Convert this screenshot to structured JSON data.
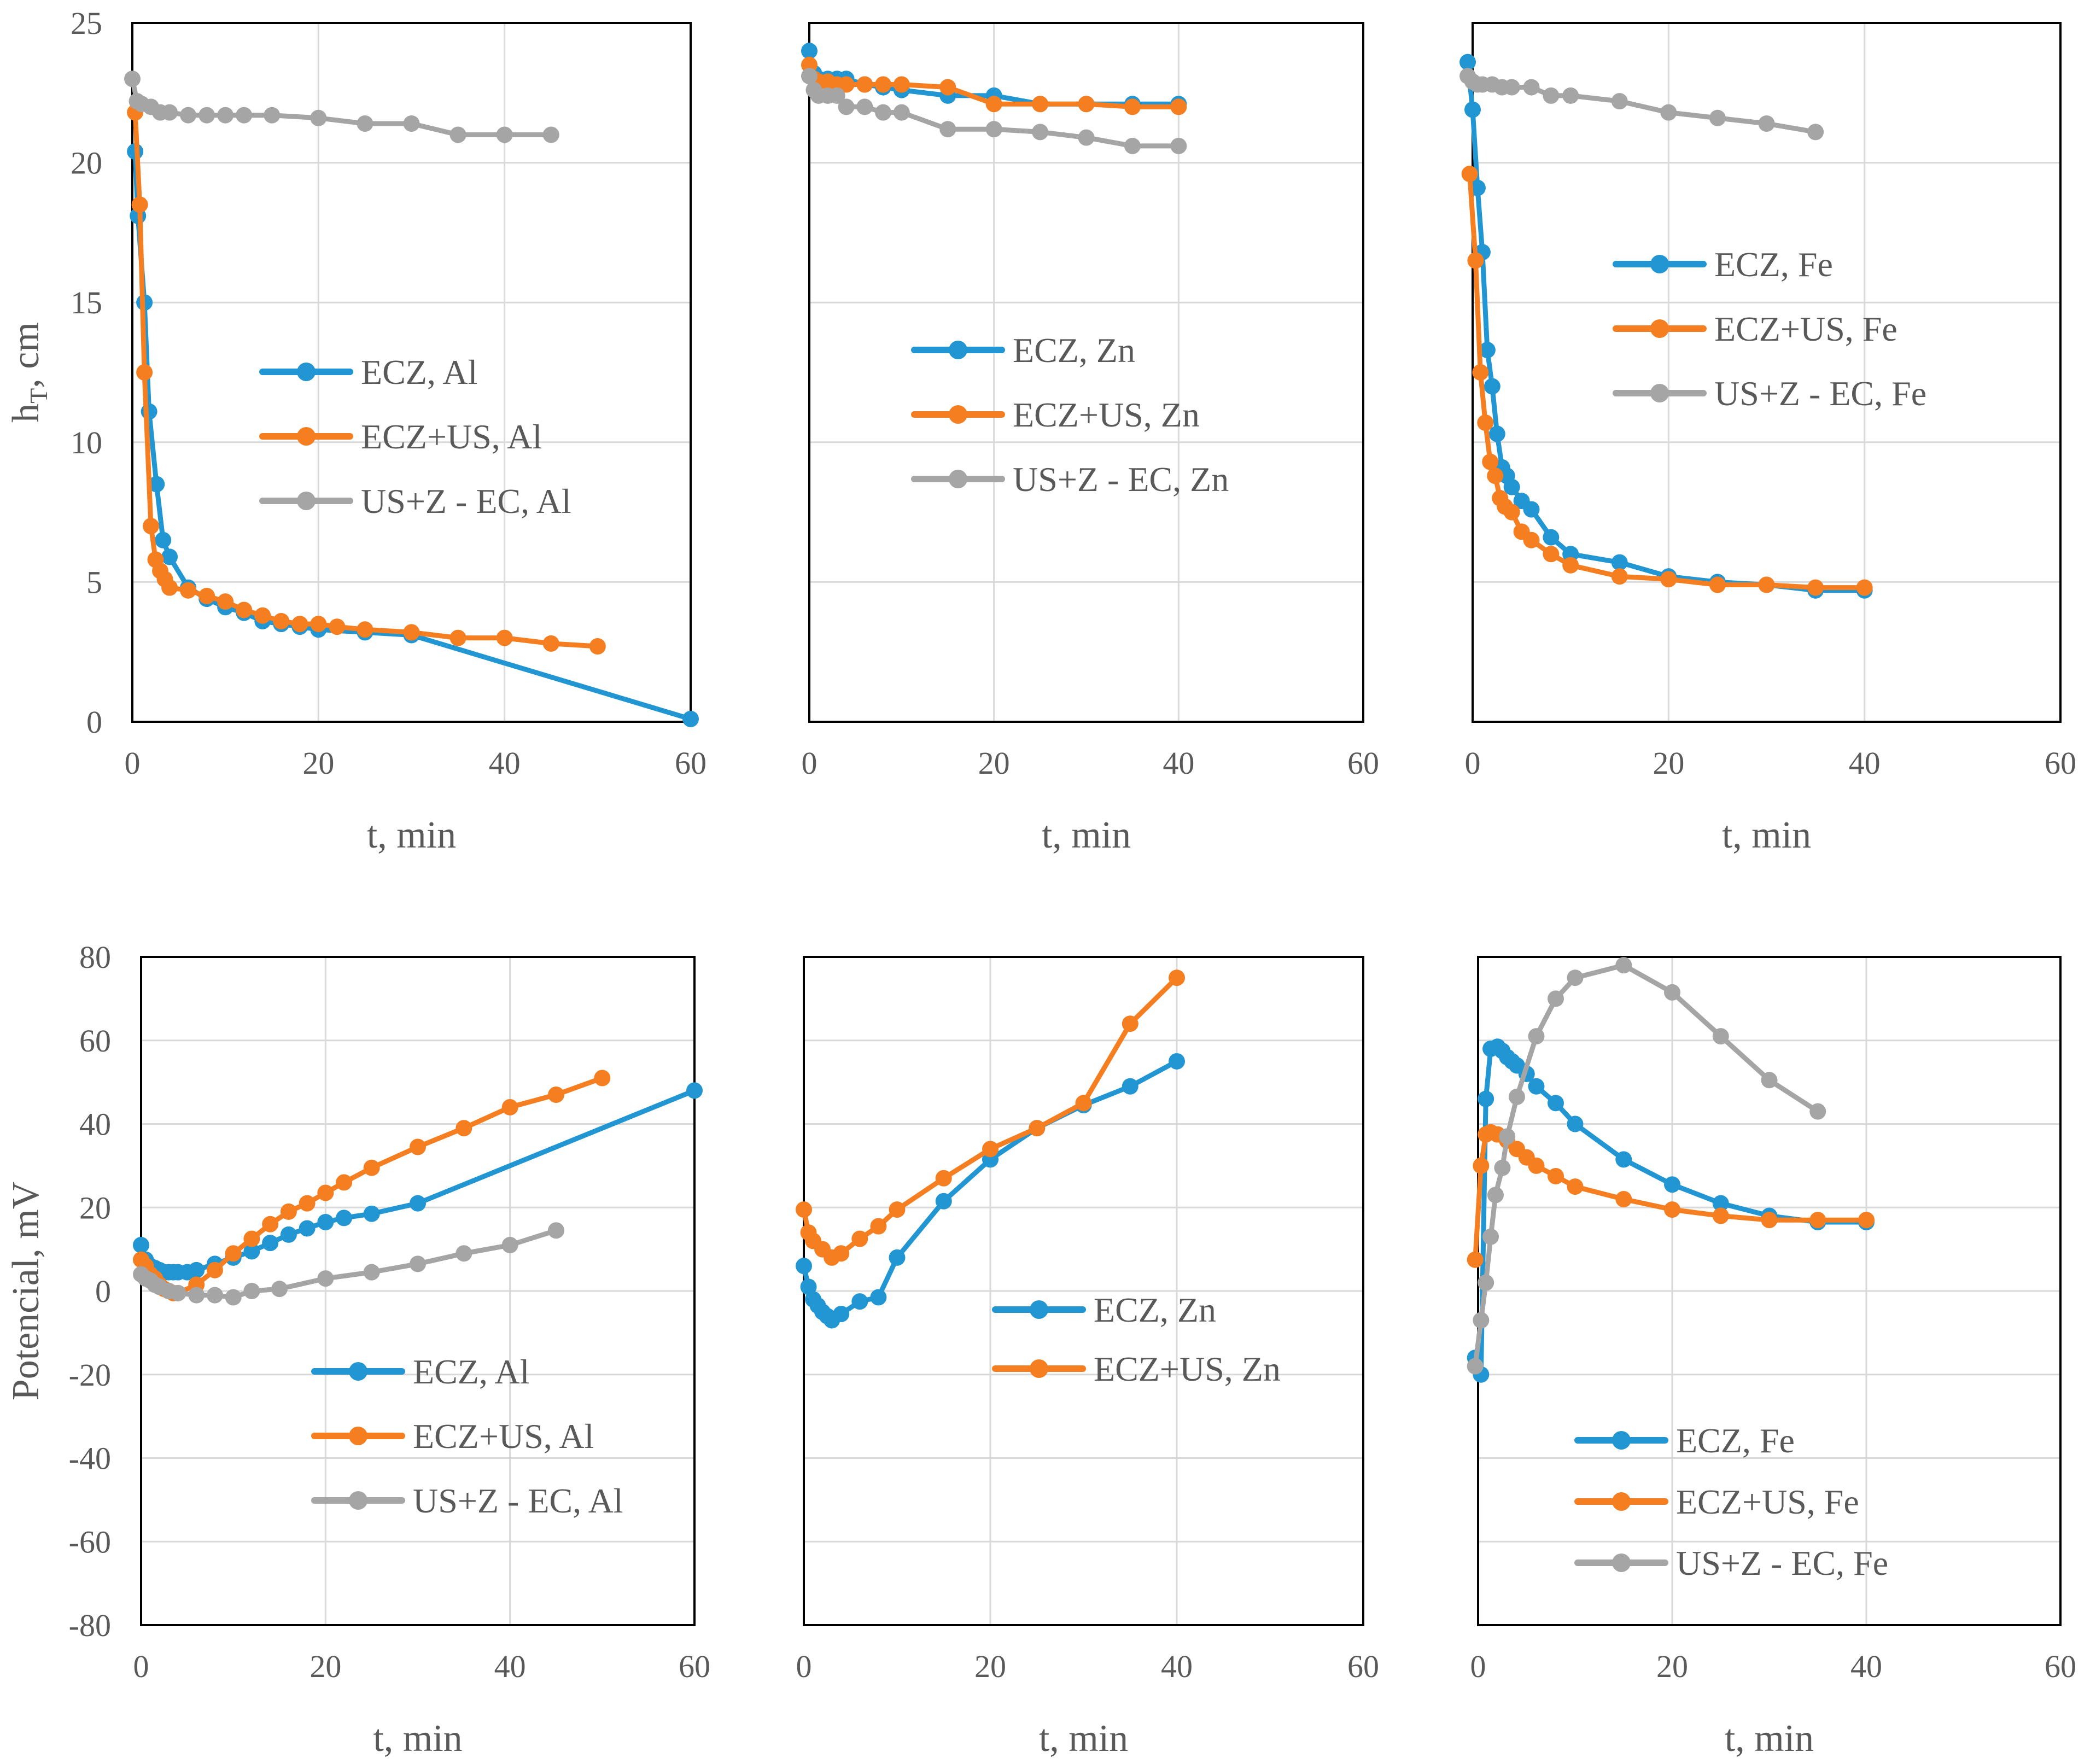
{
  "colors": {
    "blue": "#2196D3",
    "orange": "#F57E20",
    "gray": "#A5A5A5",
    "grid": "#D9D9D9",
    "text": "#595959",
    "frame": "#000000"
  },
  "chart_data": [
    {
      "id": "h-al",
      "type": "line",
      "ylabel": "h",
      "ylabel_sub": "T",
      "ylabel_suffix": ", cm",
      "xlabel": "t, min",
      "xlim": [
        0,
        60
      ],
      "ylim": [
        0,
        25
      ],
      "xticks": [
        0,
        20,
        40,
        60
      ],
      "yticks": [
        0,
        5,
        10,
        15,
        20,
        25
      ],
      "show_y_ticks": true,
      "legend_position": "center",
      "series": [
        {
          "name": "ECZ, Al",
          "color": "blue",
          "x": [
            0.3,
            0.6,
            1.3,
            1.8,
            2.6,
            3.3,
            4,
            6,
            8,
            10,
            12,
            14,
            16,
            18,
            20,
            25,
            30,
            60
          ],
          "y": [
            20.4,
            18.1,
            15.0,
            11.1,
            8.5,
            6.5,
            5.9,
            4.8,
            4.4,
            4.1,
            3.9,
            3.6,
            3.5,
            3.4,
            3.3,
            3.2,
            3.1,
            0.1
          ]
        },
        {
          "name": "ECZ+US, Al",
          "color": "orange",
          "x": [
            0.3,
            0.8,
            1.3,
            2,
            2.5,
            3,
            3.5,
            4,
            6,
            8,
            10,
            12,
            14,
            16,
            18,
            20,
            22,
            25,
            30,
            35,
            40,
            45,
            50
          ],
          "y": [
            21.8,
            18.5,
            12.5,
            7.0,
            5.8,
            5.4,
            5.1,
            4.8,
            4.7,
            4.5,
            4.3,
            4.0,
            3.8,
            3.6,
            3.5,
            3.5,
            3.4,
            3.3,
            3.2,
            3.0,
            3.0,
            2.8,
            2.7
          ]
        },
        {
          "name": "US+Z - EC, Al",
          "color": "gray",
          "x": [
            0,
            0.5,
            1,
            2,
            3,
            4,
            6,
            8,
            10,
            12,
            15,
            20,
            25,
            30,
            35,
            40,
            45
          ],
          "y": [
            23.0,
            22.2,
            22.1,
            22.0,
            21.8,
            21.8,
            21.7,
            21.7,
            21.7,
            21.7,
            21.7,
            21.6,
            21.4,
            21.4,
            21.0,
            21.0,
            21.0
          ]
        }
      ]
    },
    {
      "id": "h-zn",
      "type": "line",
      "xlabel": "t, min",
      "xlim": [
        0,
        60
      ],
      "ylim": [
        0,
        25
      ],
      "xticks": [
        0,
        20,
        40,
        60
      ],
      "yticks": [
        0,
        5,
        10,
        15,
        20,
        25
      ],
      "show_y_ticks": false,
      "legend_position": "center",
      "series": [
        {
          "name": "ECZ, Zn",
          "color": "blue",
          "x": [
            0,
            0.5,
            1,
            2,
            3,
            4,
            6,
            8,
            10,
            15,
            20,
            25,
            30,
            35,
            40
          ],
          "y": [
            24.0,
            23.2,
            23.0,
            23.0,
            23.0,
            23.0,
            22.8,
            22.7,
            22.6,
            22.4,
            22.4,
            22.1,
            22.1,
            22.1,
            22.1
          ]
        },
        {
          "name": "ECZ+US, Zn",
          "color": "orange",
          "x": [
            0,
            0.5,
            1,
            2,
            3,
            4,
            6,
            8,
            10,
            15,
            20,
            25,
            30,
            35,
            40
          ],
          "y": [
            23.5,
            23.0,
            22.9,
            22.9,
            22.8,
            22.8,
            22.8,
            22.8,
            22.8,
            22.7,
            22.1,
            22.1,
            22.1,
            22.0,
            22.0
          ]
        },
        {
          "name": "US+Z - EC, Zn",
          "color": "gray",
          "x": [
            0,
            0.5,
            1,
            2,
            3,
            4,
            6,
            8,
            10,
            15,
            20,
            25,
            30,
            35,
            40
          ],
          "y": [
            23.1,
            22.6,
            22.4,
            22.4,
            22.4,
            22.0,
            22.0,
            21.8,
            21.8,
            21.2,
            21.2,
            21.1,
            20.9,
            20.6,
            20.6
          ]
        }
      ]
    },
    {
      "id": "h-fe",
      "type": "line",
      "xlabel": "t, min",
      "xlim": [
        0,
        60
      ],
      "ylim": [
        0,
        25
      ],
      "xticks": [
        0,
        20,
        40,
        60
      ],
      "yticks": [
        0,
        5,
        10,
        15,
        20,
        25
      ],
      "show_y_ticks": false,
      "legend_position": "top-right",
      "series": [
        {
          "name": "ECZ, Fe",
          "color": "blue",
          "x": [
            -0.5,
            0,
            0.5,
            1,
            1.5,
            2,
            2.5,
            3,
            3.5,
            4,
            5,
            6,
            8,
            10,
            15,
            20,
            25,
            30,
            35,
            40
          ],
          "y": [
            23.6,
            21.9,
            19.1,
            16.8,
            13.3,
            12.0,
            10.3,
            9.1,
            8.8,
            8.4,
            7.9,
            7.6,
            6.6,
            6.0,
            5.7,
            5.2,
            5.0,
            4.9,
            4.7,
            4.7
          ]
        },
        {
          "name": "ECZ+US, Fe",
          "color": "orange",
          "x": [
            -0.3,
            0.3,
            0.8,
            1.3,
            1.8,
            2.3,
            2.8,
            3.3,
            4,
            5,
            6,
            8,
            10,
            15,
            20,
            25,
            30,
            35,
            40
          ],
          "y": [
            19.6,
            16.5,
            12.5,
            10.7,
            9.3,
            8.8,
            8.0,
            7.7,
            7.5,
            6.8,
            6.5,
            6.0,
            5.6,
            5.2,
            5.1,
            4.9,
            4.9,
            4.8,
            4.8
          ]
        },
        {
          "name": "US+Z - EC, Fe",
          "color": "gray",
          "x": [
            -0.5,
            0,
            0.5,
            1,
            2,
            3,
            4,
            6,
            8,
            10,
            15,
            20,
            25,
            30,
            35
          ],
          "y": [
            23.1,
            22.9,
            22.8,
            22.8,
            22.8,
            22.7,
            22.7,
            22.7,
            22.4,
            22.4,
            22.2,
            21.8,
            21.6,
            21.4,
            21.1
          ]
        }
      ]
    },
    {
      "id": "p-al",
      "type": "line",
      "ylabel": "Potencial, mV",
      "xlabel": "t, min",
      "xlim": [
        0,
        60
      ],
      "ylim": [
        -80,
        80
      ],
      "xticks": [
        0,
        20,
        40,
        60
      ],
      "yticks": [
        -80,
        -60,
        -40,
        -20,
        0,
        20,
        40,
        60,
        80
      ],
      "show_y_ticks": true,
      "legend_position": "bottom-center",
      "series": [
        {
          "name": "ECZ, Al",
          "color": "blue",
          "x": [
            0,
            0.5,
            1,
            1.5,
            2,
            2.5,
            3,
            3.5,
            4,
            5,
            6,
            8,
            10,
            12,
            14,
            16,
            18,
            20,
            22,
            25,
            30,
            60
          ],
          "y": [
            11,
            7.5,
            6,
            5.5,
            5,
            4.5,
            4.5,
            4.5,
            4.5,
            4.5,
            5,
            6.5,
            8,
            9.5,
            11.5,
            13.5,
            15,
            16.5,
            17.5,
            18.5,
            21,
            48
          ]
        },
        {
          "name": "ECZ+US, Al",
          "color": "orange",
          "x": [
            0,
            0.5,
            1,
            1.5,
            2,
            2.5,
            3,
            3.5,
            4,
            6,
            8,
            10,
            12,
            14,
            16,
            18,
            20,
            22,
            25,
            30,
            35,
            40,
            45,
            50
          ],
          "y": [
            7.5,
            6,
            4,
            3,
            1.5,
            0.5,
            0,
            -0.5,
            -0.5,
            1.5,
            5,
            9,
            12.5,
            16,
            19,
            21,
            23.5,
            26,
            29.5,
            34.5,
            39,
            44,
            47,
            51
          ]
        },
        {
          "name": "US+Z - EC, Al",
          "color": "gray",
          "x": [
            0,
            0.5,
            1,
            1.5,
            2,
            3,
            4,
            6,
            8,
            10,
            12,
            15,
            20,
            25,
            30,
            35,
            40,
            45
          ],
          "y": [
            4,
            3,
            2.5,
            1.5,
            1,
            0,
            -0.5,
            -1,
            -1,
            -1.5,
            0,
            0.5,
            3,
            4.5,
            6.5,
            9,
            11,
            14.5
          ]
        }
      ]
    },
    {
      "id": "p-zn",
      "type": "line",
      "xlabel": "t, min",
      "xlim": [
        0,
        60
      ],
      "ylim": [
        -80,
        80
      ],
      "xticks": [
        0,
        20,
        40,
        60
      ],
      "yticks": [
        -80,
        -60,
        -40,
        -20,
        0,
        20,
        40,
        60,
        80
      ],
      "show_y_ticks": false,
      "legend_position": "center",
      "series": [
        {
          "name": "ECZ, Zn",
          "color": "blue",
          "x": [
            0,
            0.5,
            1,
            1.5,
            2,
            2.5,
            3,
            4,
            6,
            8,
            10,
            15,
            20,
            25,
            30,
            35,
            40
          ],
          "y": [
            6,
            1,
            -2,
            -3.5,
            -5,
            -6,
            -7,
            -5.5,
            -2.5,
            -1.5,
            8,
            21.5,
            31.5,
            39,
            44.5,
            49,
            55
          ]
        },
        {
          "name": "ECZ+US, Zn",
          "color": "orange",
          "x": [
            0,
            0.5,
            1,
            2,
            3,
            4,
            6,
            8,
            10,
            15,
            20,
            25,
            30,
            35,
            40
          ],
          "y": [
            19.5,
            14,
            12,
            10,
            8,
            9,
            12.5,
            15.5,
            19.5,
            27,
            34,
            39,
            45,
            64,
            75
          ]
        }
      ]
    },
    {
      "id": "p-fe",
      "type": "line",
      "xlabel": "t, min",
      "xlim": [
        0,
        60
      ],
      "ylim": [
        -80,
        80
      ],
      "xticks": [
        0,
        20,
        40,
        60
      ],
      "yticks": [
        -80,
        -60,
        -40,
        -20,
        0,
        20,
        40,
        60,
        80
      ],
      "show_y_ticks": false,
      "legend_position": "bottom-center",
      "series": [
        {
          "name": "ECZ, Fe",
          "color": "blue",
          "x": [
            -0.3,
            0.3,
            0.8,
            1.3,
            2,
            2.5,
            3,
            3.5,
            4,
            5,
            6,
            8,
            10,
            15,
            20,
            25,
            30,
            35,
            40
          ],
          "y": [
            -16,
            -20,
            46,
            58,
            58.5,
            57.5,
            56,
            55,
            54,
            52,
            49,
            45,
            40,
            31.5,
            25.5,
            21,
            18,
            16.5,
            16.5
          ]
        },
        {
          "name": "ECZ+US, Fe",
          "color": "orange",
          "x": [
            -0.3,
            0.3,
            0.8,
            1.3,
            2,
            3,
            4,
            5,
            6,
            8,
            10,
            15,
            20,
            25,
            30,
            35,
            40
          ],
          "y": [
            7.5,
            30,
            37.5,
            38,
            37.5,
            36,
            34,
            32,
            30,
            27.5,
            25,
            22,
            19.5,
            18,
            17,
            17,
            17
          ]
        },
        {
          "name": "US+Z - EC, Fe",
          "color": "gray",
          "x": [
            -0.3,
            0.3,
            0.8,
            1.3,
            1.8,
            2.5,
            3,
            4,
            6,
            8,
            10,
            15,
            20,
            25,
            30,
            35
          ],
          "y": [
            -18,
            -7,
            2,
            13,
            23,
            29.5,
            37,
            46.5,
            61,
            70,
            75,
            78,
            71.5,
            61,
            50.5,
            43
          ]
        }
      ]
    }
  ]
}
